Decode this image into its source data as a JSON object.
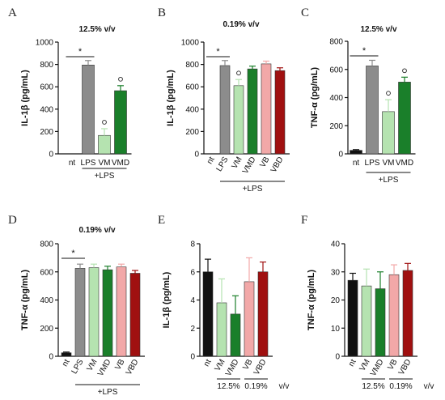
{
  "chart_data": [
    {
      "panel": "A",
      "type": "bar",
      "title": "12.5% v/v",
      "ylabel": "IL-1β (pg/mL)",
      "ylim": [
        0,
        1000
      ],
      "yticks": [
        0,
        200,
        400,
        600,
        800,
        1000
      ],
      "categories": [
        "nt",
        "LPS",
        "VM",
        "VMD"
      ],
      "values": [
        0,
        795,
        165,
        565
      ],
      "errors": [
        0,
        40,
        60,
        45
      ],
      "colors": [
        "#111111",
        "#8c8c8c",
        "#b5e3b0",
        "#1a7f2a"
      ],
      "rotate_labels": false,
      "star": "*",
      "circle_marks": [
        false,
        false,
        true,
        true
      ],
      "group_label": "+LPS",
      "group_span": [
        1,
        3
      ]
    },
    {
      "panel": "B",
      "type": "bar",
      "title": "0.19% v/v",
      "ylabel": "IL-1β (pg/mL)",
      "ylim": [
        0,
        1000
      ],
      "yticks": [
        0,
        200,
        400,
        600,
        800,
        1000
      ],
      "categories": [
        "nt",
        "LPS",
        "VM",
        "VMD",
        "VB",
        "VBD"
      ],
      "values": [
        0,
        790,
        610,
        760,
        805,
        745
      ],
      "errors": [
        0,
        45,
        55,
        25,
        25,
        25
      ],
      "colors": [
        "#111111",
        "#8c8c8c",
        "#b5e3b0",
        "#1a7f2a",
        "#f2a8a8",
        "#a01010"
      ],
      "rotate_labels": true,
      "star": "*",
      "circle_marks": [
        false,
        false,
        true,
        false,
        false,
        false
      ],
      "group_label": "+LPS",
      "group_span": [
        1,
        5
      ]
    },
    {
      "panel": "C",
      "type": "bar",
      "title": "12.5% v/v",
      "ylabel": "TNF-α (pg/mL)",
      "ylim": [
        0,
        800
      ],
      "yticks": [
        0,
        200,
        400,
        600,
        800
      ],
      "categories": [
        "nt",
        "LPS",
        "VM",
        "VMD"
      ],
      "values": [
        25,
        625,
        300,
        510
      ],
      "errors": [
        5,
        40,
        85,
        35
      ],
      "colors": [
        "#111111",
        "#8c8c8c",
        "#b5e3b0",
        "#1a7f2a"
      ],
      "rotate_labels": false,
      "star": "*",
      "circle_marks": [
        false,
        false,
        true,
        true
      ],
      "group_label": "+LPS",
      "group_span": [
        1,
        3
      ]
    },
    {
      "panel": "D",
      "type": "bar",
      "title": "0.19% v/v",
      "ylabel": "TNF-α (pg/mL)",
      "ylim": [
        0,
        800
      ],
      "yticks": [
        0,
        200,
        400,
        600,
        800
      ],
      "categories": [
        "nt",
        "LPS",
        "VM",
        "VMD",
        "VB",
        "VBD"
      ],
      "values": [
        25,
        625,
        630,
        615,
        635,
        590
      ],
      "errors": [
        5,
        30,
        25,
        25,
        20,
        20
      ],
      "colors": [
        "#111111",
        "#8c8c8c",
        "#b5e3b0",
        "#1a7f2a",
        "#f2a8a8",
        "#a01010"
      ],
      "rotate_labels": true,
      "star": "*",
      "circle_marks": [
        false,
        false,
        false,
        false,
        false,
        false
      ],
      "group_label": "+LPS",
      "group_span": [
        1,
        5
      ]
    },
    {
      "panel": "E",
      "type": "bar",
      "title": "",
      "ylabel": "IL-1β (pg/mL)",
      "ylim": [
        0,
        8
      ],
      "yticks": [
        0,
        2,
        4,
        6,
        8
      ],
      "categories": [
        "nt",
        "VM",
        "VMD",
        "VB",
        "VBD"
      ],
      "values": [
        6.0,
        3.8,
        3.0,
        5.3,
        6.0
      ],
      "errors": [
        0.9,
        1.7,
        1.3,
        1.7,
        0.7
      ],
      "colors": [
        "#111111",
        "#b5e3b0",
        "#1a7f2a",
        "#f2a8a8",
        "#a01010"
      ],
      "rotate_labels": true,
      "star": "",
      "circle_marks": [
        false,
        false,
        false,
        false,
        false
      ],
      "bottom_labels": [
        "12.5%",
        "0.19%",
        "v/v"
      ]
    },
    {
      "panel": "F",
      "type": "bar",
      "title": "",
      "ylabel": "TNF-α (pg/mL)",
      "ylim": [
        0,
        40
      ],
      "yticks": [
        0,
        10,
        20,
        30,
        40
      ],
      "categories": [
        "nt",
        "VM",
        "VMD",
        "VB",
        "VBD"
      ],
      "values": [
        27,
        25,
        24,
        29,
        30.5
      ],
      "errors": [
        2.5,
        6,
        6,
        3.5,
        2.5
      ],
      "colors": [
        "#111111",
        "#b5e3b0",
        "#1a7f2a",
        "#f2a8a8",
        "#a01010"
      ],
      "rotate_labels": true,
      "star": "",
      "circle_marks": [
        false,
        false,
        false,
        false,
        false
      ],
      "bottom_labels": [
        "12.5%",
        "0.19%",
        "v/v"
      ]
    }
  ]
}
